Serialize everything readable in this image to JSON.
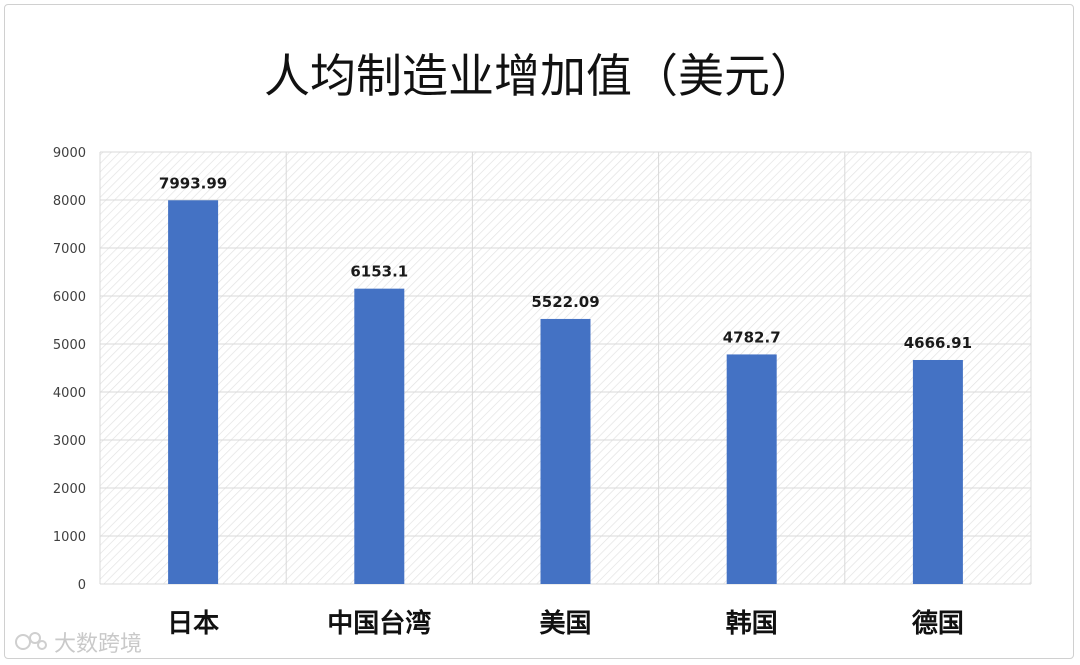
{
  "chart_data": {
    "type": "bar",
    "title": "人均制造业增加值（美元）",
    "categories": [
      "日本",
      "中国台湾",
      "美国",
      "韩国",
      "德国"
    ],
    "values": [
      7993.99,
      6153.1,
      5522.09,
      4782.7,
      4666.91
    ],
    "data_labels": [
      "7993.99",
      "6153.1",
      "5522.09",
      "4782.7",
      "4666.91"
    ],
    "ylim": [
      0,
      9000
    ],
    "yticks": [
      "0",
      "1000",
      "2000",
      "3000",
      "4000",
      "5000",
      "6000",
      "7000",
      "8000",
      "9000"
    ],
    "grid": true,
    "bar_color": "#4472C4",
    "grid_color": "#d9d9d9"
  },
  "watermark": {
    "text": "大数跨境",
    "icon": "logo-icon"
  }
}
